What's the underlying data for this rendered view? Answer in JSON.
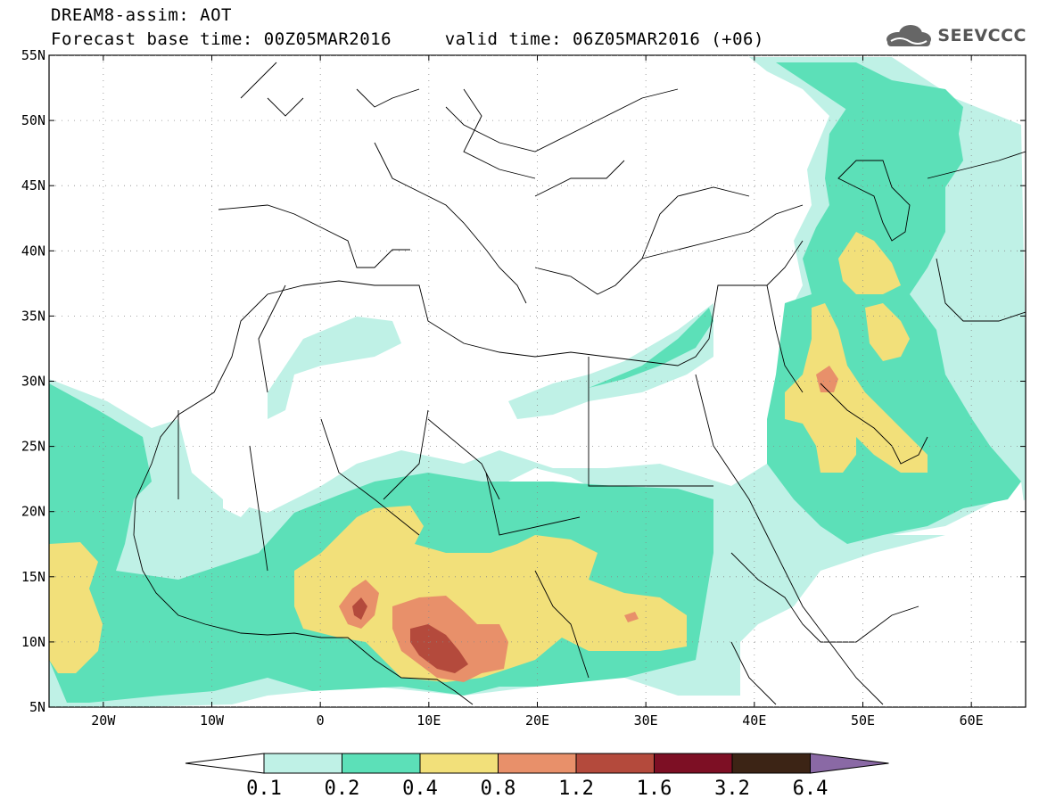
{
  "header": {
    "title_line1": "DREAM8-assim: AOT",
    "title_line2": "Forecast base time: 00Z05MAR2016     valid time: 06Z05MAR2016 (+06)",
    "brand": "SEEVCCC",
    "brand_icon": "cloud-logo-icon"
  },
  "map": {
    "lon_range": [
      -25,
      65
    ],
    "lat_range": [
      5,
      55
    ],
    "lon_ticks": [
      {
        "value": -20,
        "label": "20W"
      },
      {
        "value": -10,
        "label": "10W"
      },
      {
        "value": 0,
        "label": "0"
      },
      {
        "value": 10,
        "label": "10E"
      },
      {
        "value": 20,
        "label": "20E"
      },
      {
        "value": 30,
        "label": "30E"
      },
      {
        "value": 40,
        "label": "40E"
      },
      {
        "value": 50,
        "label": "50E"
      },
      {
        "value": 60,
        "label": "60E"
      }
    ],
    "lat_ticks": [
      {
        "value": 5,
        "label": "5N"
      },
      {
        "value": 10,
        "label": "10N"
      },
      {
        "value": 15,
        "label": "15N"
      },
      {
        "value": 20,
        "label": "20N"
      },
      {
        "value": 25,
        "label": "25N"
      },
      {
        "value": 30,
        "label": "30N"
      },
      {
        "value": 35,
        "label": "35N"
      },
      {
        "value": 40,
        "label": "40N"
      },
      {
        "value": 45,
        "label": "45N"
      },
      {
        "value": 50,
        "label": "50N"
      },
      {
        "value": 55,
        "label": "55N"
      }
    ],
    "grid": "dotted"
  },
  "colorbar": {
    "colors": [
      "#ffffff",
      "#bff1e6",
      "#5ce0b8",
      "#f2e07a",
      "#e8906a",
      "#b44a3c",
      "#7d0f24",
      "#3c2415",
      "#8a69a5"
    ],
    "labels": [
      "0.1",
      "0.2",
      "0.4",
      "0.8",
      "1.2",
      "1.6",
      "3.2",
      "6.4"
    ]
  }
}
